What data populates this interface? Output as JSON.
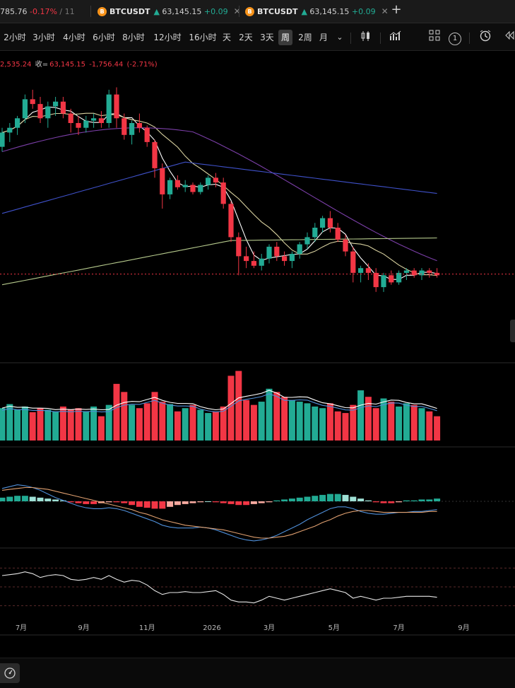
{
  "tabs": [
    {
      "price": "785.76",
      "change": "-0.17%",
      "extra": "/ 11",
      "direction": "down"
    },
    {
      "symbol": "BTCUSDT",
      "price": "63,145.15",
      "change": "+0.09",
      "direction": "up",
      "coin": "B"
    },
    {
      "symbol": "BTCUSDT",
      "price": "63,145.15",
      "change": "+0.09",
      "direction": "up",
      "coin": "B"
    }
  ],
  "toolbar": {
    "timeframes": [
      "2小时",
      "3小时",
      "4小时",
      "6小时",
      "8小时",
      "12小时",
      "16小时",
      "天",
      "2天",
      "3天",
      "周",
      "2周",
      "月"
    ],
    "active_timeframe": "周",
    "badge_count": "1",
    "icons": [
      "dropdown-chevron-icon",
      "chart-type-candles-icon",
      "indicators-icon",
      "templates-icon",
      "alert-clock-icon",
      "replay-icon"
    ]
  },
  "ohlc": {
    "prefix_value": "2,535.24",
    "close_label": "收=",
    "close": "63,145.15",
    "change": "-1,756.44",
    "change_pct": "(-2.71%)"
  },
  "colors": {
    "up": "#22ab94",
    "down": "#f23645",
    "ma_short": "#ffffff",
    "ma_mid": "#d9d2a0",
    "ma_long1": "#7b3fa8",
    "ma_long2": "#3f51c9",
    "ma_200": "#b5c98c",
    "macd_line": "#4f8fd9",
    "signal_line": "#e0a070",
    "rsi": "#e6e6e6"
  },
  "chart_data": {
    "type": "candlestick",
    "x_labels": [
      "7月",
      "9月",
      "11月",
      "2026",
      "3月",
      "5月",
      "7月",
      "9月"
    ],
    "last_price": "63,145.15",
    "candles": [
      [
        98,
        106,
        96,
        104
      ],
      [
        104,
        108,
        100,
        106
      ],
      [
        106,
        111,
        103,
        110
      ],
      [
        110,
        120,
        108,
        118
      ],
      [
        118,
        122,
        114,
        116
      ],
      [
        116,
        119,
        108,
        110
      ],
      [
        110,
        117,
        106,
        115
      ],
      [
        115,
        119,
        111,
        117
      ],
      [
        117,
        119,
        110,
        112
      ],
      [
        112,
        114,
        104,
        108
      ],
      [
        108,
        111,
        103,
        106
      ],
      [
        106,
        111,
        104,
        109
      ],
      [
        109,
        112,
        106,
        110
      ],
      [
        110,
        113,
        106,
        108
      ],
      [
        108,
        122,
        106,
        120
      ],
      [
        120,
        123,
        106,
        110
      ],
      [
        110,
        112,
        101,
        103
      ],
      [
        103,
        109,
        99,
        108
      ],
      [
        108,
        112,
        104,
        106
      ],
      [
        106,
        107,
        98,
        100
      ],
      [
        100,
        101,
        85,
        89
      ],
      [
        89,
        91,
        72,
        78
      ],
      [
        78,
        85,
        76,
        84
      ],
      [
        84,
        86,
        80,
        81
      ],
      [
        81,
        84,
        79,
        82
      ],
      [
        82,
        83,
        78,
        79
      ],
      [
        79,
        83,
        78,
        82
      ],
      [
        82,
        86,
        80,
        85
      ],
      [
        85,
        87,
        81,
        83
      ],
      [
        83,
        85,
        72,
        74
      ],
      [
        74,
        75,
        58,
        60
      ],
      [
        60,
        62,
        44,
        52
      ],
      [
        52,
        56,
        47,
        50
      ],
      [
        50,
        54,
        47,
        48
      ],
      [
        48,
        53,
        46,
        51
      ],
      [
        51,
        57,
        49,
        56
      ],
      [
        56,
        58,
        50,
        52
      ],
      [
        52,
        54,
        48,
        50
      ],
      [
        50,
        54,
        47,
        53
      ],
      [
        53,
        58,
        51,
        57
      ],
      [
        57,
        62,
        55,
        60
      ],
      [
        60,
        66,
        58,
        64
      ],
      [
        64,
        69,
        62,
        68
      ],
      [
        68,
        71,
        62,
        64
      ],
      [
        64,
        66,
        58,
        59
      ],
      [
        59,
        61,
        52,
        54
      ],
      [
        54,
        56,
        41,
        45
      ],
      [
        45,
        48,
        41,
        47
      ],
      [
        47,
        49,
        42,
        45
      ],
      [
        45,
        47,
        37,
        39
      ],
      [
        39,
        45,
        37,
        44
      ],
      [
        44,
        46,
        40,
        41
      ],
      [
        41,
        46,
        40,
        45
      ],
      [
        45,
        47,
        42,
        46
      ],
      [
        46,
        47,
        43,
        44
      ],
      [
        44,
        47,
        42,
        46
      ],
      [
        46,
        47,
        43,
        45
      ],
      [
        45,
        47,
        43,
        44
      ]
    ],
    "volume": [
      40,
      45,
      38,
      42,
      35,
      40,
      38,
      36,
      42,
      38,
      40,
      36,
      42,
      30,
      44,
      70,
      60,
      44,
      40,
      46,
      60,
      48,
      45,
      36,
      40,
      44,
      38,
      34,
      36,
      42,
      80,
      86,
      50,
      44,
      48,
      64,
      60,
      54,
      50,
      48,
      46,
      42,
      40,
      46,
      36,
      34,
      44,
      62,
      54,
      40,
      52,
      48,
      42,
      46,
      44,
      40,
      36,
      30
    ],
    "macd_hist": [
      4,
      5,
      6,
      6,
      5,
      4,
      3,
      2,
      1,
      -1,
      -2,
      -3,
      -3,
      -2,
      -1,
      -1,
      -2,
      -4,
      -6,
      -7,
      -8,
      -8,
      -6,
      -4,
      -3,
      -2,
      -1,
      0,
      -1,
      -2,
      -3,
      -4,
      -4,
      -3,
      -2,
      -1,
      1,
      2,
      3,
      4,
      5,
      6,
      7,
      8,
      8,
      7,
      5,
      3,
      1,
      -1,
      -2,
      -2,
      -1,
      1,
      1,
      2,
      2,
      3
    ],
    "macd_line": [
      14,
      16,
      18,
      17,
      15,
      12,
      8,
      4,
      1,
      -2,
      -5,
      -7,
      -8,
      -8,
      -7,
      -8,
      -10,
      -13,
      -16,
      -19,
      -22,
      -26,
      -28,
      -29,
      -29,
      -29,
      -28,
      -29,
      -31,
      -34,
      -37,
      -40,
      -42,
      -43,
      -42,
      -40,
      -37,
      -33,
      -29,
      -25,
      -20,
      -16,
      -12,
      -8,
      -6,
      -6,
      -8,
      -11,
      -13,
      -14,
      -14,
      -13,
      -12,
      -12,
      -11,
      -11,
      -10,
      -9
    ],
    "signal_line": [
      12,
      13,
      14,
      15,
      15,
      14,
      13,
      11,
      9,
      7,
      5,
      3,
      1,
      -1,
      -3,
      -5,
      -7,
      -9,
      -12,
      -14,
      -17,
      -20,
      -22,
      -24,
      -26,
      -27,
      -28,
      -29,
      -30,
      -31,
      -33,
      -35,
      -37,
      -39,
      -40,
      -40,
      -39,
      -38,
      -36,
      -33,
      -30,
      -27,
      -23,
      -20,
      -16,
      -13,
      -11,
      -10,
      -10,
      -11,
      -12,
      -12,
      -12,
      -12,
      -12,
      -12,
      -11,
      -11
    ],
    "rsi": [
      62,
      63,
      64,
      66,
      64,
      60,
      62,
      63,
      62,
      58,
      57,
      58,
      60,
      58,
      62,
      58,
      55,
      57,
      56,
      52,
      46,
      42,
      44,
      44,
      45,
      44,
      44,
      45,
      46,
      42,
      36,
      34,
      34,
      33,
      36,
      40,
      38,
      36,
      38,
      40,
      42,
      44,
      46,
      48,
      46,
      44,
      38,
      40,
      38,
      36,
      38,
      38,
      39,
      40,
      40,
      40,
      40,
      39
    ],
    "rsi_levels": [
      70,
      50,
      30
    ]
  }
}
